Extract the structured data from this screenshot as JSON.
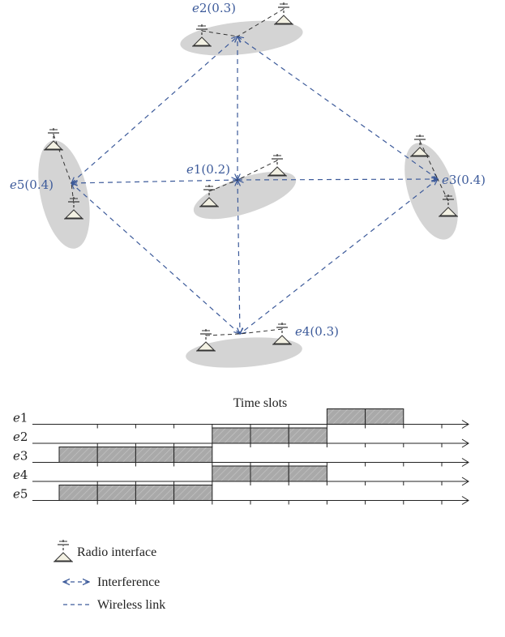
{
  "nodes": [
    {
      "id": "e1",
      "label_name": "e",
      "label_num": "1",
      "label_weight": "(0.2)"
    },
    {
      "id": "e2",
      "label_name": "e",
      "label_num": "2",
      "label_weight": "(0.3)"
    },
    {
      "id": "e3",
      "label_name": "e",
      "label_num": "3",
      "label_weight": "(0.4)"
    },
    {
      "id": "e4",
      "label_name": "e",
      "label_num": "4",
      "label_weight": "(0.3)"
    },
    {
      "id": "e5",
      "label_name": "e",
      "label_num": "5",
      "label_weight": "(0.4)"
    }
  ],
  "interference": [
    [
      "e1",
      "e2"
    ],
    [
      "e1",
      "e3"
    ],
    [
      "e1",
      "e4"
    ],
    [
      "e1",
      "e5"
    ],
    [
      "e2",
      "e3"
    ],
    [
      "e3",
      "e4"
    ],
    [
      "e4",
      "e5"
    ],
    [
      "e5",
      "e2"
    ]
  ],
  "schedule": {
    "title": "Time slots",
    "slot_count": 10,
    "rows": [
      {
        "name": "e",
        "num": "1",
        "slots": [
          7,
          8
        ]
      },
      {
        "name": "e",
        "num": "2",
        "slots": [
          4,
          5,
          6
        ]
      },
      {
        "name": "e",
        "num": "3",
        "slots": [
          0,
          1,
          2,
          3
        ]
      },
      {
        "name": "e",
        "num": "4",
        "slots": [
          4,
          5,
          6
        ]
      },
      {
        "name": "e",
        "num": "5",
        "slots": [
          0,
          1,
          2,
          3
        ]
      }
    ]
  },
  "legend": {
    "radio": "Radio interface",
    "interference": "Interference",
    "wireless": "Wireless link"
  },
  "colors": {
    "link": "#3c5a9a",
    "ellipse": "#d4d4d4",
    "slot_fill": "#a9a9a9"
  }
}
